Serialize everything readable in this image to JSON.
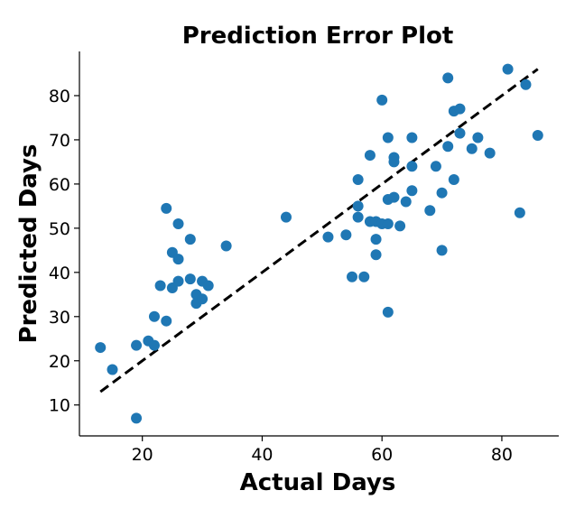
{
  "chart_data": {
    "type": "scatter",
    "title": "Prediction Error Plot",
    "xlabel": "Actual Days",
    "ylabel": "Predicted Days",
    "xlim": [
      9.5,
      89.5
    ],
    "ylim": [
      3,
      90
    ],
    "xticks": [
      20,
      40,
      60,
      80
    ],
    "yticks": [
      10,
      20,
      30,
      40,
      50,
      60,
      70,
      80
    ],
    "grid": false,
    "colors": {
      "points": "#1f77b4",
      "line": "#000000"
    },
    "reference_line": {
      "style": "dashed",
      "from": [
        13,
        13
      ],
      "to": [
        86,
        86
      ]
    },
    "points": [
      [
        13,
        23
      ],
      [
        15,
        18
      ],
      [
        19,
        23.5
      ],
      [
        19,
        7
      ],
      [
        21,
        24.5
      ],
      [
        22,
        23.5
      ],
      [
        22,
        30
      ],
      [
        23,
        37
      ],
      [
        24,
        54.5
      ],
      [
        24,
        29
      ],
      [
        25,
        44.5
      ],
      [
        25,
        36.5
      ],
      [
        26,
        51
      ],
      [
        26,
        43
      ],
      [
        26,
        38
      ],
      [
        28,
        47.5
      ],
      [
        28,
        38.5
      ],
      [
        29,
        35
      ],
      [
        29,
        33
      ],
      [
        30,
        38
      ],
      [
        30,
        34
      ],
      [
        31,
        37
      ],
      [
        34,
        46
      ],
      [
        44,
        52.5
      ],
      [
        51,
        48
      ],
      [
        54,
        48.5
      ],
      [
        55,
        39
      ],
      [
        56,
        61
      ],
      [
        56,
        55
      ],
      [
        56,
        52.5
      ],
      [
        57,
        39
      ],
      [
        58,
        66.5
      ],
      [
        58,
        51.5
      ],
      [
        59,
        51.5
      ],
      [
        59,
        47.5
      ],
      [
        59,
        44
      ],
      [
        60,
        79
      ],
      [
        60,
        51
      ],
      [
        61,
        70.5
      ],
      [
        61,
        56.5
      ],
      [
        61,
        51
      ],
      [
        61,
        31
      ],
      [
        62,
        66
      ],
      [
        62,
        65
      ],
      [
        62,
        57
      ],
      [
        63,
        50.5
      ],
      [
        64,
        56
      ],
      [
        65,
        70.5
      ],
      [
        65,
        64
      ],
      [
        65,
        58.5
      ],
      [
        68,
        54
      ],
      [
        69,
        64
      ],
      [
        70,
        58
      ],
      [
        70,
        45
      ],
      [
        71,
        84
      ],
      [
        71,
        68.5
      ],
      [
        72,
        76.5
      ],
      [
        72,
        61
      ],
      [
        73,
        77
      ],
      [
        73,
        71.5
      ],
      [
        75,
        68
      ],
      [
        76,
        70.5
      ],
      [
        78,
        67
      ],
      [
        81,
        86
      ],
      [
        83,
        53.5
      ],
      [
        84,
        82.5
      ],
      [
        86,
        71
      ]
    ]
  }
}
